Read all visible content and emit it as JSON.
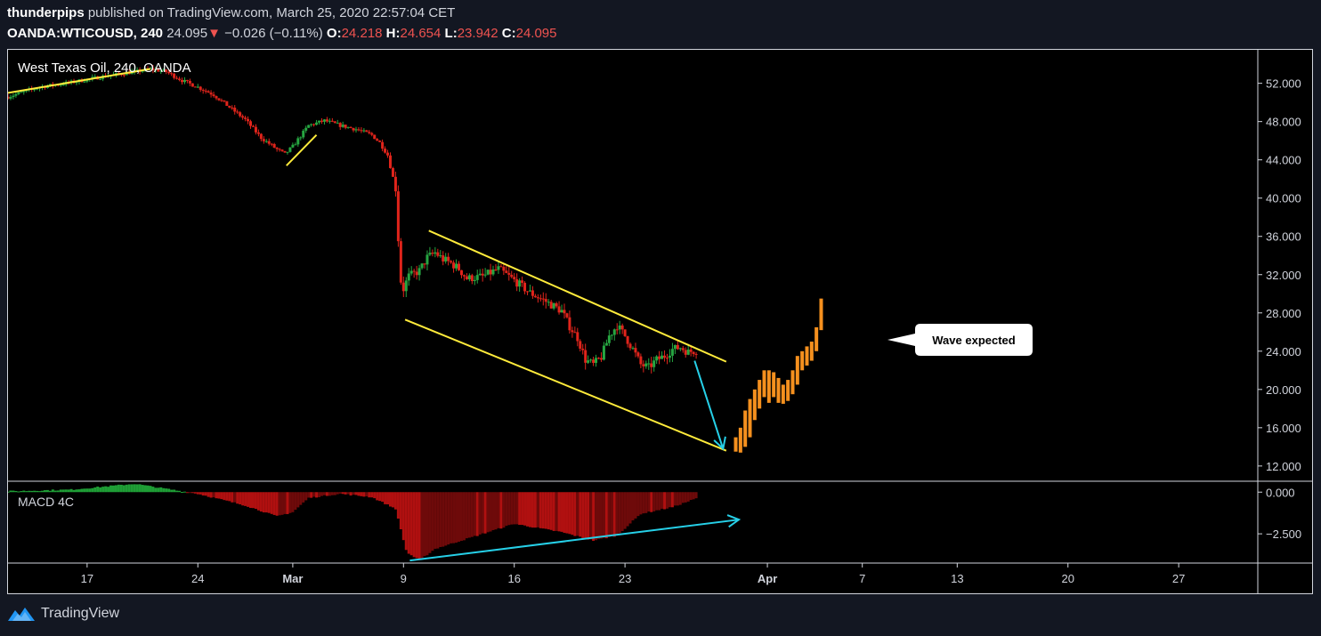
{
  "header": {
    "publisher": "thunderpips",
    "published_text": "published on TradingView.com, March 25, 2020 22:57:04 CET",
    "symbol": "OANDA:WTICOUSD, 240",
    "last": "24.095",
    "change_arrow": "▼",
    "change": "−0.026 (−0.11%)",
    "o_label": "O:",
    "o_value": "24.218",
    "h_label": "H:",
    "h_value": "24.654",
    "l_label": "L:",
    "l_value": "23.942",
    "c_label": "C:",
    "c_value": "24.095"
  },
  "brand": {
    "name": "TradingView",
    "icon": "tradingview-logo-icon"
  },
  "colors": {
    "up": "#26a641",
    "down": "#e0241b",
    "trendline": "#ffeb3b",
    "arrow": "#26d0e8",
    "projection": "#f5901e",
    "macd_pos": "#1f9e36",
    "macd_neg": "#b01010",
    "macd_neg_dark": "#6e0a0a",
    "text": "#d1d4dc",
    "border": "#d1d4dc"
  },
  "chart_data": {
    "type": "candlestick",
    "title": "West Texas Oil, 240, OANDA",
    "indicator_label": "MACD 4C",
    "annotation": "Wave expected",
    "y_ticks": [
      "52.000",
      "48.000",
      "44.000",
      "40.000",
      "36.000",
      "32.000",
      "28.000",
      "24.000",
      "20.000",
      "16.000",
      "12.000"
    ],
    "y_tick_values": [
      52,
      48,
      44,
      40,
      36,
      32,
      28,
      24,
      20,
      16,
      12
    ],
    "macd_ticks": [
      "0.000",
      "−2.500"
    ],
    "macd_tick_values": [
      0,
      -2.5
    ],
    "x_ticks": [
      "17",
      "24",
      "Mar",
      "9",
      "16",
      "23",
      "Apr",
      "7",
      "13",
      "20",
      "27"
    ],
    "x_tick_days": [
      17,
      24,
      30,
      37,
      44,
      51,
      60,
      66,
      72,
      79,
      86
    ],
    "price_path": [
      [
        12,
        50.6
      ],
      [
        14,
        51.6
      ],
      [
        16,
        52.1
      ],
      [
        18,
        52.7
      ],
      [
        20,
        53.2
      ],
      [
        21,
        53.5
      ],
      [
        22,
        53.2
      ],
      [
        23,
        52.3
      ],
      [
        24,
        51.6
      ],
      [
        25,
        50.8
      ],
      [
        26,
        49.5
      ],
      [
        27,
        48.2
      ],
      [
        28,
        46.3
      ],
      [
        29,
        45.1
      ],
      [
        29.5,
        44.6
      ],
      [
        30,
        45.4
      ],
      [
        31,
        47.6
      ],
      [
        32,
        48.1
      ],
      [
        33,
        47.6
      ],
      [
        34,
        47.2
      ],
      [
        35,
        46.6
      ],
      [
        35.5,
        45.8
      ],
      [
        36,
        44.5
      ],
      [
        36.5,
        41.0
      ],
      [
        36.8,
        31.5
      ],
      [
        37,
        30.5
      ],
      [
        37.3,
        31.8
      ],
      [
        38,
        32.4
      ],
      [
        38.5,
        33.8
      ],
      [
        39,
        34.3
      ],
      [
        39.5,
        33.6
      ],
      [
        40,
        33.2
      ],
      [
        40.5,
        32.6
      ],
      [
        41,
        31.6
      ],
      [
        42,
        31.8
      ],
      [
        43,
        32.6
      ],
      [
        44,
        31.4
      ],
      [
        45,
        30.1
      ],
      [
        46,
        29.2
      ],
      [
        47,
        28.2
      ],
      [
        47.5,
        26.6
      ],
      [
        48,
        25.4
      ],
      [
        48.5,
        23.1
      ],
      [
        49,
        22.6
      ],
      [
        49.5,
        23.4
      ],
      [
        50,
        25.6
      ],
      [
        50.5,
        26.7
      ],
      [
        51,
        25.6
      ],
      [
        51.5,
        24.2
      ],
      [
        52,
        22.6
      ],
      [
        52.5,
        22.3
      ],
      [
        53,
        23.1
      ],
      [
        53.5,
        23.5
      ],
      [
        54,
        24.2
      ],
      [
        54.5,
        24.4
      ],
      [
        55,
        23.9
      ],
      [
        55.5,
        24.1
      ]
    ],
    "projection": [
      [
        58.0,
        13.5,
        15.0
      ],
      [
        58.3,
        13.4,
        16.0
      ],
      [
        58.6,
        14.0,
        17.8
      ],
      [
        58.9,
        15.0,
        19.0
      ],
      [
        59.2,
        16.8,
        20.0
      ],
      [
        59.5,
        18.0,
        21.0
      ],
      [
        59.8,
        19.2,
        22.0
      ],
      [
        60.1,
        18.6,
        22.0
      ],
      [
        60.4,
        19.2,
        21.8
      ],
      [
        60.7,
        18.6,
        21.2
      ],
      [
        61.0,
        18.5,
        20.5
      ],
      [
        61.3,
        18.8,
        21.0
      ],
      [
        61.6,
        19.5,
        22.0
      ],
      [
        61.9,
        20.5,
        23.5
      ],
      [
        62.2,
        22.0,
        24.0
      ],
      [
        62.5,
        22.5,
        24.5
      ],
      [
        62.8,
        23.0,
        25.0
      ],
      [
        63.1,
        24.0,
        26.5
      ],
      [
        63.4,
        26.2,
        29.5
      ]
    ],
    "trendlines": [
      {
        "from": [
          12,
          51.0
        ],
        "to": [
          21,
          53.5
        ]
      },
      {
        "from": [
          29.6,
          43.4
        ],
        "to": [
          31.5,
          46.6
        ]
      },
      {
        "from": [
          38.6,
          36.6
        ],
        "to": [
          57.4,
          22.9
        ]
      },
      {
        "from": [
          37.1,
          27.3
        ],
        "to": [
          57.4,
          13.6
        ]
      }
    ],
    "arrows": [
      {
        "pane": "price",
        "from": [
          55.4,
          23.0
        ],
        "to": [
          57.2,
          13.8
        ]
      },
      {
        "pane": "macd",
        "from": [
          37.4,
          -4.1
        ],
        "to": [
          58.2,
          -1.65
        ]
      }
    ],
    "x_range": [
      12,
      91
    ],
    "y_range": [
      10.5,
      55.5
    ],
    "macd_range": [
      -4.2,
      0.6
    ]
  }
}
